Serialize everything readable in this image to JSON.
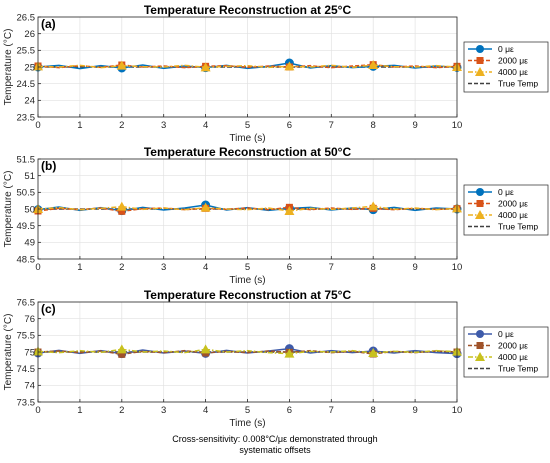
{
  "caption": {
    "line1": "Cross-sensitivity: 0.008°C/με demonstrated through",
    "line2": "systematic offsets"
  },
  "colors": {
    "series_0": "#0072BD",
    "series_2000": "#D95319",
    "series_4000": "#EDB120",
    "true_temp": "#404040",
    "panel_c_series_0": "#3E5BAA",
    "panel_c_series_2000": "#A0532A",
    "panel_c_series_4000": "#C8C11E"
  },
  "chart_data": [
    {
      "type": "line",
      "panel_label": "(a)",
      "title": "Temperature Reconstruction at 25°C",
      "xlabel": "Time (s)",
      "ylabel": "Temperature (°C)",
      "xlim": [
        0,
        10
      ],
      "ylim": [
        23.5,
        26.5
      ],
      "xticks": [
        0,
        1,
        2,
        3,
        4,
        5,
        6,
        7,
        8,
        9,
        10
      ],
      "yticks": [
        23.5,
        24,
        24.5,
        25,
        25.5,
        26,
        26.5
      ],
      "ytick_labels": [
        "23.5",
        "24",
        "24.5",
        "25",
        "25.5",
        "26",
        "26.5"
      ],
      "grid": true,
      "legend": "right-outside",
      "true_temp": 25,
      "series": [
        {
          "name": "0 με",
          "color": "#0072BD",
          "marker": "circle",
          "linestyle": "solid",
          "x": [
            0,
            0.5,
            1,
            1.5,
            2,
            2.5,
            3,
            3.5,
            4,
            4.5,
            5,
            5.5,
            6,
            6.5,
            7,
            7.5,
            8,
            8.5,
            9,
            9.5,
            10
          ],
          "y": [
            25.0,
            25.05,
            24.95,
            25.04,
            24.97,
            25.06,
            24.96,
            25.03,
            24.98,
            25.05,
            24.96,
            25.02,
            25.12,
            24.97,
            25.04,
            24.98,
            25.02,
            25.05,
            24.97,
            25.03,
            24.99
          ]
        },
        {
          "name": "2000 με",
          "color": "#D95319",
          "marker": "square",
          "linestyle": "dashed",
          "x": [
            0,
            0.5,
            1,
            1.5,
            2,
            2.5,
            3,
            3.5,
            4,
            4.5,
            5,
            5.5,
            6,
            6.5,
            7,
            7.5,
            8,
            8.5,
            9,
            9.5,
            10
          ],
          "y": [
            25.03,
            24.98,
            25.04,
            24.99,
            25.06,
            25.0,
            25.03,
            24.98,
            25.02,
            25.04,
            24.99,
            25.03,
            25.0,
            25.04,
            24.98,
            25.03,
            25.07,
            25.0,
            25.03,
            24.98,
            25.02
          ]
        },
        {
          "name": "4000 με",
          "color": "#EDB120",
          "marker": "triangle",
          "linestyle": "dashdot",
          "x": [
            0,
            0.5,
            1,
            1.5,
            2,
            2.5,
            3,
            3.5,
            4,
            4.5,
            5,
            5.5,
            6,
            6.5,
            7,
            7.5,
            8,
            8.5,
            9,
            9.5,
            10
          ],
          "y": [
            25.02,
            25.0,
            25.05,
            24.98,
            25.04,
            25.01,
            25.0,
            25.05,
            24.99,
            25.02,
            25.04,
            24.99,
            25.02,
            25.0,
            25.05,
            24.99,
            25.06,
            25.01,
            25.0,
            25.04,
            25.0
          ]
        }
      ]
    },
    {
      "type": "line",
      "panel_label": "(b)",
      "title": "Temperature Reconstruction at 50°C",
      "xlabel": "Time (s)",
      "ylabel": "Temperature (°C)",
      "xlim": [
        0,
        10
      ],
      "ylim": [
        48.5,
        51.5
      ],
      "xticks": [
        0,
        1,
        2,
        3,
        4,
        5,
        6,
        7,
        8,
        9,
        10
      ],
      "yticks": [
        48.5,
        49,
        49.5,
        50,
        50.5,
        51,
        51.5
      ],
      "ytick_labels": [
        "48.5",
        "49",
        "49.5",
        "50",
        "50.5",
        "51",
        "51.5"
      ],
      "grid": true,
      "legend": "right-outside",
      "true_temp": 50,
      "series": [
        {
          "name": "0 με",
          "color": "#0072BD",
          "marker": "circle",
          "linestyle": "solid",
          "x": [
            0,
            0.5,
            1,
            1.5,
            2,
            2.5,
            3,
            3.5,
            4,
            4.5,
            5,
            5.5,
            6,
            6.5,
            7,
            7.5,
            8,
            8.5,
            9,
            9.5,
            10
          ],
          "y": [
            49.98,
            50.06,
            49.96,
            50.04,
            49.95,
            50.05,
            49.97,
            50.03,
            50.12,
            49.97,
            50.04,
            49.96,
            50.02,
            50.05,
            49.97,
            50.03,
            49.98,
            50.05,
            49.96,
            50.03,
            50.0
          ]
        },
        {
          "name": "2000 με",
          "color": "#D95319",
          "marker": "square",
          "linestyle": "dashed",
          "x": [
            0,
            0.5,
            1,
            1.5,
            2,
            2.5,
            3,
            3.5,
            4,
            4.5,
            5,
            5.5,
            6,
            6.5,
            7,
            7.5,
            8,
            8.5,
            9,
            9.5,
            10
          ],
          "y": [
            49.94,
            50.02,
            49.98,
            50.03,
            49.93,
            50.01,
            50.03,
            49.98,
            50.02,
            49.99,
            50.03,
            49.98,
            50.05,
            49.98,
            50.03,
            49.99,
            50.02,
            49.98,
            50.02,
            49.99,
            50.01
          ]
        },
        {
          "name": "4000 με",
          "color": "#EDB120",
          "marker": "triangle",
          "linestyle": "dashdot",
          "x": [
            0,
            0.5,
            1,
            1.5,
            2,
            2.5,
            3,
            3.5,
            4,
            4.5,
            5,
            5.5,
            6,
            6.5,
            7,
            7.5,
            8,
            8.5,
            9,
            9.5,
            10
          ],
          "y": [
            50.0,
            50.04,
            49.98,
            50.02,
            50.07,
            49.99,
            50.03,
            49.98,
            50.04,
            50.0,
            49.98,
            50.03,
            49.94,
            50.02,
            49.99,
            50.03,
            50.08,
            49.99,
            50.03,
            49.98,
            50.02
          ]
        }
      ]
    },
    {
      "type": "line",
      "panel_label": "(c)",
      "title": "Temperature Reconstruction at 75°C",
      "xlabel": "Time (s)",
      "ylabel": "Temperature (°C)",
      "xlim": [
        0,
        10
      ],
      "ylim": [
        73.5,
        76.5
      ],
      "xticks": [
        0,
        1,
        2,
        3,
        4,
        5,
        6,
        7,
        8,
        9,
        10
      ],
      "yticks": [
        73.5,
        74,
        74.5,
        75,
        75.5,
        76,
        76.5
      ],
      "ytick_labels": [
        "73.5",
        "74",
        "74.5",
        "75",
        "75.5",
        "76",
        "76.5"
      ],
      "grid": true,
      "legend": "right-outside",
      "true_temp": 75,
      "series": [
        {
          "name": "0 με",
          "color": "#3E5BAA",
          "marker": "circle",
          "linestyle": "solid",
          "x": [
            0,
            0.5,
            1,
            1.5,
            2,
            2.5,
            3,
            3.5,
            4,
            4.5,
            5,
            5.5,
            6,
            6.5,
            7,
            7.5,
            8,
            8.5,
            9,
            9.5,
            10
          ],
          "y": [
            74.97,
            75.05,
            74.96,
            75.04,
            74.95,
            75.06,
            74.97,
            75.03,
            74.96,
            75.05,
            74.97,
            75.03,
            75.1,
            74.97,
            75.04,
            74.98,
            75.03,
            74.97,
            75.04,
            74.98,
            74.95
          ]
        },
        {
          "name": "2000 με",
          "color": "#A0532A",
          "marker": "square",
          "linestyle": "dashed",
          "x": [
            0,
            0.5,
            1,
            1.5,
            2,
            2.5,
            3,
            3.5,
            4,
            4.5,
            5,
            5.5,
            6,
            6.5,
            7,
            7.5,
            8,
            8.5,
            9,
            9.5,
            10
          ],
          "y": [
            75.0,
            75.03,
            74.98,
            75.03,
            74.93,
            75.02,
            74.98,
            75.04,
            74.97,
            75.02,
            74.98,
            75.03,
            74.99,
            75.04,
            74.98,
            75.02,
            74.94,
            75.02,
            74.98,
            75.03,
            75.0
          ]
        },
        {
          "name": "4000 με",
          "color": "#C8C11E",
          "marker": "triangle",
          "linestyle": "dashdot",
          "x": [
            0,
            0.5,
            1,
            1.5,
            2,
            2.5,
            3,
            3.5,
            4,
            4.5,
            5,
            5.5,
            6,
            6.5,
            7,
            7.5,
            8,
            8.5,
            9,
            9.5,
            10
          ],
          "y": [
            75.02,
            74.98,
            75.04,
            74.99,
            75.08,
            75.0,
            75.03,
            74.98,
            75.08,
            75.0,
            75.04,
            74.98,
            74.95,
            75.02,
            75.0,
            75.04,
            74.97,
            75.02,
            74.99,
            75.04,
            75.01
          ]
        }
      ]
    }
  ],
  "legend_true_temp_label": "True Temp"
}
